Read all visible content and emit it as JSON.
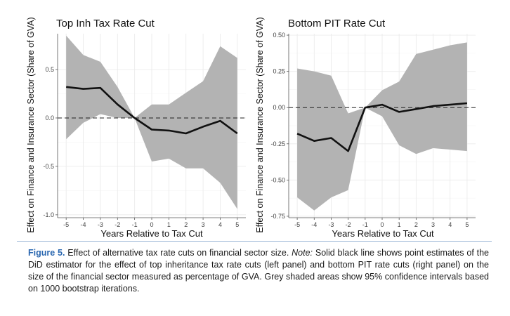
{
  "caption": {
    "label": "Figure 5.",
    "title": " Effect of alternative tax rate cuts on financial sector size. ",
    "note_label": "Note:",
    "text": " Solid black line shows point estimates of the DiD estimator for the effect of top inheritance tax rate cuts (left panel) and bottom PIT rate cuts (right panel) on the size of the financial sector measured as percentage of GVA. Grey shaded areas show 95% confidence intervals based on 1000 bootstrap iterations."
  },
  "chart_data": [
    {
      "type": "line",
      "title": "Top Inh Tax Rate Cut",
      "xlabel": "Years Relative to Tax Cut",
      "ylabel": "Effect on Finance and Insurance Sector (Share of GVA)",
      "x": [
        -5,
        -4,
        -3,
        -2,
        -1,
        0,
        1,
        2,
        3,
        4,
        5
      ],
      "xticks": [
        "-5",
        "-4",
        "-3",
        "-2",
        "-1",
        "0",
        "1",
        "2",
        "3",
        "4",
        "5"
      ],
      "yticks": [
        "-1.0",
        "-0.5",
        "0.0",
        "0.5"
      ],
      "ytick_values": [
        -1.0,
        -0.5,
        0.0,
        0.5
      ],
      "ylim": [
        -1.03,
        0.87
      ],
      "series": [
        {
          "name": "Point estimate",
          "values": [
            0.32,
            0.3,
            0.31,
            0.14,
            0.0,
            -0.12,
            -0.13,
            -0.16,
            -0.09,
            -0.03,
            -0.16
          ]
        },
        {
          "name": "95% CI upper",
          "values": [
            0.85,
            0.65,
            0.58,
            0.32,
            0.0,
            0.14,
            0.14,
            0.26,
            0.38,
            0.74,
            0.62
          ]
        },
        {
          "name": "95% CI lower",
          "values": [
            -0.22,
            -0.05,
            0.04,
            0.0,
            0.0,
            -0.45,
            -0.42,
            -0.52,
            -0.52,
            -0.67,
            -0.94
          ]
        }
      ],
      "reference_line": 0
    },
    {
      "type": "line",
      "title": "Bottom PIT Rate Cut",
      "xlabel": "Years Relative to Tax Cut",
      "ylabel": "Effect on Finance and Insurance Sector (Share of GVA)",
      "x": [
        -5,
        -4,
        -3,
        -2,
        -1,
        0,
        1,
        2,
        3,
        4,
        5
      ],
      "xticks": [
        "-5",
        "-4",
        "-3",
        "-2",
        "-1",
        "0",
        "1",
        "2",
        "3",
        "4",
        "5"
      ],
      "yticks": [
        "-0.75",
        "-0.50",
        "-0.25",
        "0.00",
        "0.25",
        "0.50"
      ],
      "ytick_values": [
        -0.75,
        -0.5,
        -0.25,
        0.0,
        0.25,
        0.5
      ],
      "ylim": [
        -0.76,
        0.51
      ],
      "series": [
        {
          "name": "Point estimate",
          "values": [
            -0.18,
            -0.23,
            -0.21,
            -0.3,
            0.0,
            0.02,
            -0.03,
            -0.01,
            0.01,
            0.02,
            0.03
          ]
        },
        {
          "name": "95% CI upper",
          "values": [
            0.27,
            0.25,
            0.22,
            -0.04,
            0.0,
            0.12,
            0.18,
            0.37,
            0.4,
            0.43,
            0.45
          ]
        },
        {
          "name": "95% CI lower",
          "values": [
            -0.62,
            -0.71,
            -0.62,
            -0.57,
            0.0,
            -0.06,
            -0.26,
            -0.32,
            -0.28,
            -0.29,
            -0.3
          ]
        }
      ],
      "reference_line": 0
    }
  ],
  "colors": {
    "band": "#b3b3b3",
    "line": "#111111",
    "grid_major": "#ebebeb",
    "grid_minor": "#f5f5f5",
    "axis": "#555555",
    "caption_accent": "#2a67b0"
  }
}
